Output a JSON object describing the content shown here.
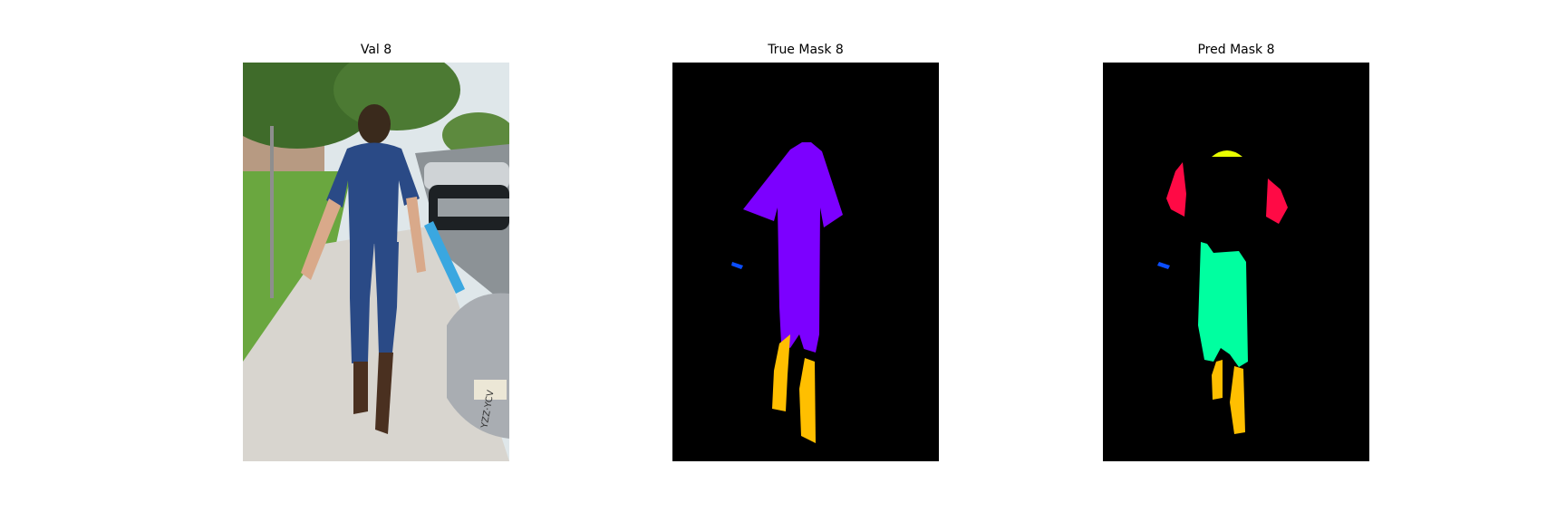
{
  "panels": [
    {
      "title": "Val 8",
      "kind": "photo"
    },
    {
      "title": "True Mask 8",
      "kind": "mask"
    },
    {
      "title": "Pred Mask 8",
      "kind": "mask"
    }
  ],
  "photo": {
    "plate_text": "YZZ·YCV"
  },
  "mask_colors": {
    "background": "#000000",
    "clothing": "#7c00ff",
    "shoes": "#ffbf00",
    "hand_item": "#0a4dff",
    "sleeves": "#ff0a45",
    "hair": "#e8ff00",
    "pants": "#00ffa0"
  }
}
